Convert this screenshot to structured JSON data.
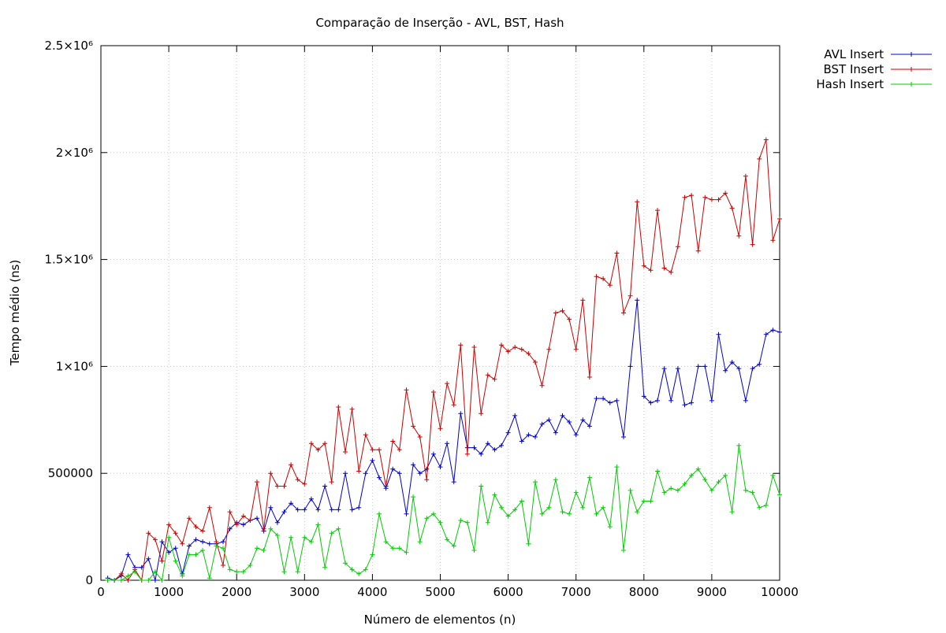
{
  "chart_data": {
    "type": "line",
    "title": "Comparação de Inserção - AVL, BST, Hash",
    "xlabel": "Número de elementos (n)",
    "ylabel": "Tempo médio (ns)",
    "xlim": [
      0,
      10000
    ],
    "ylim": [
      0,
      2500000
    ],
    "x_ticks": [
      0,
      1000,
      2000,
      3000,
      4000,
      5000,
      6000,
      7000,
      8000,
      9000,
      10000
    ],
    "x_tick_labels": [
      "0",
      "1000",
      "2000",
      "3000",
      "4000",
      "5000",
      "6000",
      "7000",
      "8000",
      "9000",
      "10000"
    ],
    "y_ticks": [
      0,
      500000,
      1000000,
      1500000,
      2000000,
      2500000
    ],
    "y_tick_labels": [
      "0",
      "500000",
      "1×10⁶",
      "1.5×10⁶",
      "2×10⁶",
      "2.5×10⁶"
    ],
    "grid": true,
    "legend_position": "outside-top-right",
    "x": [
      100,
      200,
      300,
      400,
      500,
      600,
      700,
      800,
      900,
      1000,
      1100,
      1200,
      1300,
      1400,
      1500,
      1600,
      1700,
      1800,
      1900,
      2000,
      2100,
      2200,
      2300,
      2400,
      2500,
      2600,
      2700,
      2800,
      2900,
      3000,
      3100,
      3200,
      3300,
      3400,
      3500,
      3600,
      3700,
      3800,
      3900,
      4000,
      4100,
      4200,
      4300,
      4400,
      4500,
      4600,
      4700,
      4800,
      4900,
      5000,
      5100,
      5200,
      5300,
      5400,
      5500,
      5600,
      5700,
      5800,
      5900,
      6000,
      6100,
      6200,
      6300,
      6400,
      6500,
      6600,
      6700,
      6800,
      6900,
      7000,
      7100,
      7200,
      7300,
      7400,
      7500,
      7600,
      7700,
      7800,
      7900,
      8000,
      8100,
      8200,
      8300,
      8400,
      8500,
      8600,
      8700,
      8800,
      8900,
      9000,
      9100,
      9200,
      9300,
      9400,
      9500,
      9600,
      9700,
      9800,
      9900,
      10000
    ],
    "series": [
      {
        "name": "AVL Insert",
        "color": "#0000cc",
        "values": [
          10000,
          0,
          20000,
          120000,
          60000,
          60000,
          100000,
          0,
          180000,
          130000,
          150000,
          30000,
          160000,
          190000,
          180000,
          170000,
          170000,
          180000,
          240000,
          270000,
          260000,
          280000,
          290000,
          230000,
          340000,
          270000,
          320000,
          360000,
          330000,
          330000,
          380000,
          330000,
          440000,
          330000,
          330000,
          500000,
          330000,
          340000,
          500000,
          560000,
          480000,
          430000,
          520000,
          500000,
          310000,
          540000,
          500000,
          520000,
          590000,
          530000,
          640000,
          460000,
          780000,
          620000,
          620000,
          590000,
          640000,
          610000,
          630000,
          690000,
          770000,
          650000,
          680000,
          670000,
          730000,
          750000,
          690000,
          770000,
          740000,
          680000,
          750000,
          720000,
          850000,
          850000,
          830000,
          840000,
          670000,
          1000000,
          1310000,
          860000,
          830000,
          840000,
          990000,
          840000,
          990000,
          820000,
          830000,
          1000000,
          1000000,
          840000,
          1150000,
          980000,
          1020000,
          990000,
          840000,
          990000,
          1010000,
          1150000,
          1170000,
          1160000
        ]
      },
      {
        "name": "BST Insert",
        "color": "#cc0000",
        "values": [
          0,
          0,
          30000,
          0,
          50000,
          0,
          220000,
          190000,
          90000,
          260000,
          220000,
          170000,
          290000,
          250000,
          230000,
          340000,
          180000,
          70000,
          320000,
          260000,
          300000,
          280000,
          460000,
          240000,
          500000,
          440000,
          440000,
          540000,
          470000,
          450000,
          640000,
          610000,
          640000,
          460000,
          810000,
          600000,
          800000,
          510000,
          680000,
          610000,
          610000,
          440000,
          650000,
          610000,
          890000,
          720000,
          670000,
          470000,
          880000,
          710000,
          920000,
          820000,
          1100000,
          590000,
          1090000,
          780000,
          960000,
          940000,
          1100000,
          1070000,
          1090000,
          1080000,
          1060000,
          1020000,
          910000,
          1080000,
          1250000,
          1260000,
          1220000,
          1080000,
          1310000,
          950000,
          1420000,
          1410000,
          1380000,
          1530000,
          1250000,
          1330000,
          1770000,
          1470000,
          1450000,
          1730000,
          1460000,
          1440000,
          1560000,
          1790000,
          1800000,
          1540000,
          1790000,
          1780000,
          1780000,
          1810000,
          1740000,
          1610000,
          1890000,
          1570000,
          1970000,
          2060000,
          1590000,
          1690000
        ]
      },
      {
        "name": "Hash Insert",
        "color": "#00cc00",
        "values": [
          0,
          0,
          0,
          20000,
          40000,
          0,
          0,
          40000,
          0,
          200000,
          90000,
          20000,
          120000,
          120000,
          140000,
          10000,
          160000,
          150000,
          50000,
          40000,
          40000,
          70000,
          150000,
          140000,
          240000,
          210000,
          40000,
          200000,
          40000,
          200000,
          180000,
          260000,
          60000,
          220000,
          240000,
          80000,
          50000,
          30000,
          50000,
          120000,
          310000,
          180000,
          150000,
          150000,
          130000,
          390000,
          180000,
          290000,
          310000,
          270000,
          190000,
          160000,
          280000,
          270000,
          140000,
          440000,
          270000,
          400000,
          340000,
          300000,
          330000,
          370000,
          170000,
          460000,
          310000,
          340000,
          470000,
          320000,
          310000,
          410000,
          340000,
          480000,
          310000,
          340000,
          250000,
          530000,
          140000,
          420000,
          320000,
          370000,
          370000,
          510000,
          410000,
          430000,
          420000,
          450000,
          490000,
          520000,
          470000,
          420000,
          460000,
          490000,
          320000,
          630000,
          420000,
          410000,
          340000,
          350000,
          490000,
          400000
        ]
      }
    ]
  }
}
